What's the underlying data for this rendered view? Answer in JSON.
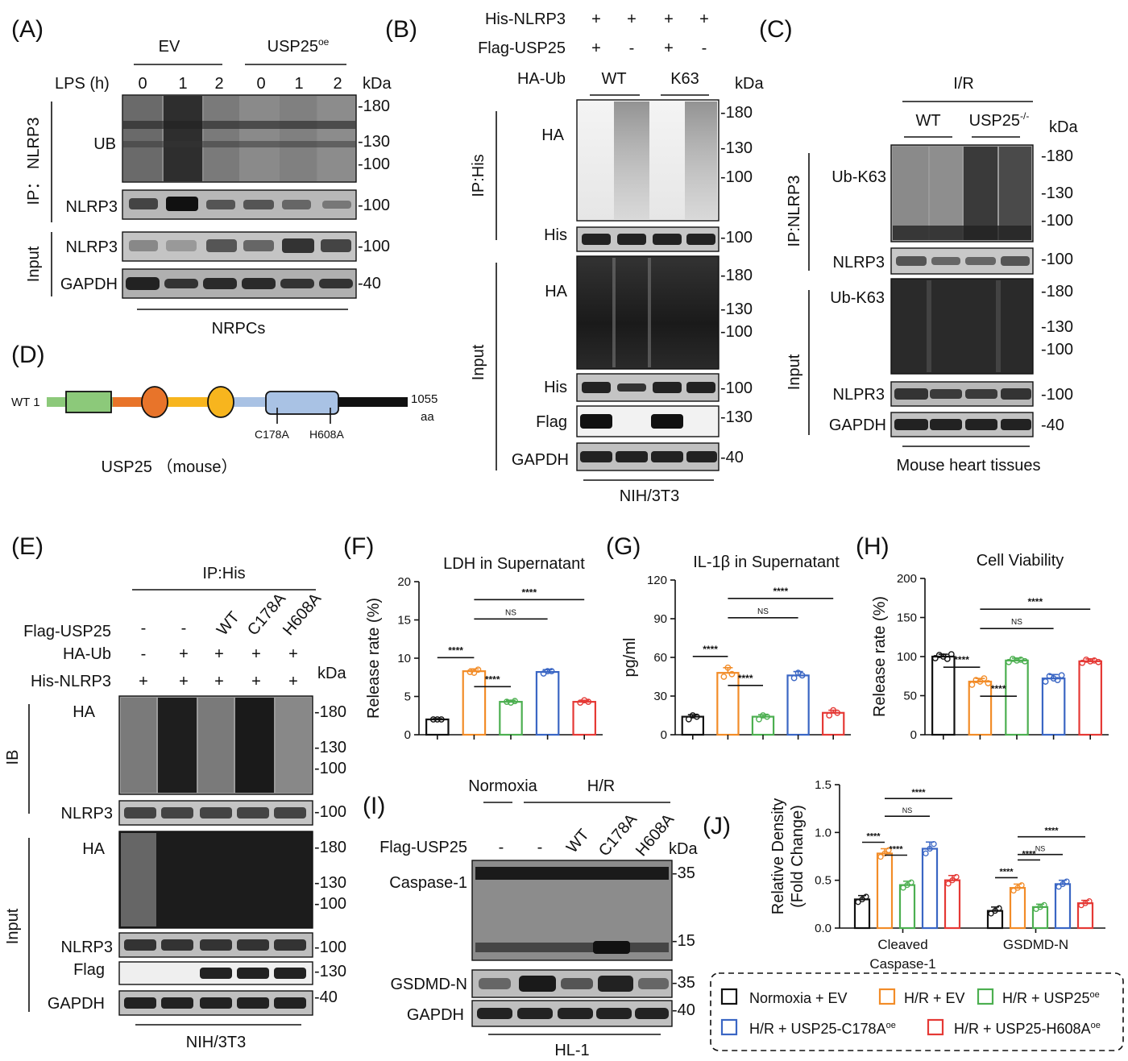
{
  "panels": [
    "(A)",
    "(B)",
    "(C)",
    "(D)",
    "(E)",
    "(F)",
    "(G)",
    "(H)",
    "(I)",
    "(J)"
  ],
  "A": {
    "groups": [
      "EV",
      "USP25oe"
    ],
    "lps_label": "LPS (h)",
    "lps_values": [
      "0",
      "1",
      "2",
      "0",
      "1",
      "2"
    ],
    "kda": "kDa",
    "ip_label": "IP： NLRP3",
    "input_label": "Input",
    "rows": [
      "UB",
      "NLRP3",
      "NLRP3",
      "GAPDH"
    ],
    "markers": [
      "-180",
      "-130",
      "-100",
      "-100",
      "-100",
      "-40"
    ],
    "cell": "NRPCs"
  },
  "B": {
    "rows_top": [
      {
        "label": "His-NLRP3",
        "vals": [
          "+",
          "+",
          "+",
          "+"
        ]
      },
      {
        "label": "Flag-USP25",
        "vals": [
          "+",
          "-",
          "+",
          "-"
        ]
      }
    ],
    "haub_label": "HA-Ub",
    "haub_groups": [
      "WT",
      "K63"
    ],
    "kda": "kDa",
    "ip_label": "IP:His",
    "input_label": "Input",
    "rows": [
      "HA",
      "His",
      "HA",
      "His",
      "Flag",
      "GAPDH"
    ],
    "markers": [
      "-180",
      "-130",
      "-100",
      "-100",
      "-180",
      "-130",
      "-100",
      "-100",
      "-130",
      "-40"
    ],
    "cell": "NIH/3T3"
  },
  "C": {
    "treatment": "I/R",
    "groups": [
      "WT",
      "USP25-/-"
    ],
    "kda": "kDa",
    "ip_label": "IP:NLRP3",
    "input_label": "Input",
    "rows": [
      "Ub-K63",
      "NLRP3",
      "Ub-K63",
      "NLPR3",
      "GAPDH"
    ],
    "markers": [
      "-180",
      "-130",
      "-100",
      "-100",
      "-180",
      "-130",
      "-100",
      "-100",
      "-40"
    ],
    "tissue": "Mouse heart tissues"
  },
  "D": {
    "start": "WT 1",
    "end": "1055",
    "end_unit": "aa",
    "mutations": [
      "C178A",
      "H608A"
    ],
    "title": "USP25 （mouse）",
    "colors": {
      "seg1": "#8cc97a",
      "seg2": "#e8742a",
      "seg3": "#f7b51e",
      "seg4": "#a9c2e4",
      "seg5": "#111111",
      "box1": "#8cc97a",
      "circle1": "#e8742a",
      "circle2": "#f7b51e",
      "box2": "#a9c2e4"
    }
  },
  "E": {
    "ip_label": "IP:His",
    "rows_top": [
      {
        "label": "Flag-USP25",
        "vals": [
          "-",
          "-",
          "WT",
          "C178A",
          "H608A"
        ]
      },
      {
        "label": "HA-Ub",
        "vals": [
          "-",
          "+",
          "+",
          "+",
          "+"
        ]
      },
      {
        "label": "His-NLRP3",
        "vals": [
          "+",
          "+",
          "+",
          "+",
          "+"
        ]
      }
    ],
    "kda": "kDa",
    "ib_label": "IB",
    "input_label": "Input",
    "rows": [
      "HA",
      "NLRP3",
      "HA",
      "NLRP3",
      "Flag",
      "GAPDH"
    ],
    "markers": [
      "-180",
      "-130",
      "-100",
      "-100",
      "-180",
      "-130",
      "-100",
      "-100",
      "-130",
      "-40"
    ],
    "cell": "NIH/3T3"
  },
  "I": {
    "groups": [
      "Normoxia",
      "H/R"
    ],
    "flag_label": "Flag-USP25",
    "flag_vals": [
      "-",
      "-",
      "WT",
      "C178A",
      "H608A"
    ],
    "kda": "kDa",
    "rows": [
      "Caspase-1",
      "GSDMD-N",
      "GAPDH"
    ],
    "markers": [
      "-35",
      "-15",
      "-35",
      "-40"
    ],
    "cell": "HL-1"
  },
  "legend": {
    "items": [
      "Normoxia + EV",
      "H/R + EV",
      "H/R + USP25oe",
      "H/R + USP25-C178Aoe",
      "H/R + USP25-H608Aoe"
    ],
    "colors": [
      "#111111",
      "#f28c28",
      "#4caf50",
      "#3a66c4",
      "#e53935"
    ]
  },
  "chart_data": [
    {
      "panel": "F",
      "type": "bar",
      "title": "LDH in Supernatant",
      "ylabel": "Release rate (%)",
      "ylim": [
        0,
        20
      ],
      "yticks": [
        0,
        5,
        10,
        15,
        20
      ],
      "categories": [
        "Normoxia + EV",
        "H/R + EV",
        "H/R + USP25oe",
        "H/R + USP25-C178Aoe",
        "H/R + USP25-H608Aoe"
      ],
      "values": [
        2.0,
        8.3,
        4.3,
        8.2,
        4.3
      ],
      "errors": [
        0.1,
        0.3,
        0.2,
        0.3,
        0.2
      ],
      "points": [
        [
          2.0,
          2.0,
          2.0
        ],
        [
          8.2,
          8.1,
          8.5
        ],
        [
          4.3,
          4.2,
          4.4
        ],
        [
          8.0,
          8.3,
          8.3
        ],
        [
          4.2,
          4.5,
          4.3
        ]
      ],
      "significance": [
        {
          "from": 0,
          "to": 1,
          "label": "****"
        },
        {
          "from": 1,
          "to": 2,
          "label": "****"
        },
        {
          "from": 1,
          "to": 3,
          "label": "NS"
        },
        {
          "from": 1,
          "to": 4,
          "label": "****"
        }
      ]
    },
    {
      "panel": "G",
      "type": "bar",
      "title": "IL-1β in Supernatant",
      "ylabel": "pg/ml",
      "ylim": [
        0,
        120
      ],
      "yticks": [
        0,
        30,
        60,
        90,
        120
      ],
      "categories": [
        "Normoxia + EV",
        "H/R + EV",
        "H/R + USP25oe",
        "H/R + USP25-C178Aoe",
        "H/R + USP25-H608Aoe"
      ],
      "values": [
        14,
        48,
        14,
        46,
        17
      ],
      "errors": [
        1.5,
        4,
        1.5,
        3,
        2
      ],
      "points": [
        [
          12,
          15,
          14
        ],
        [
          45,
          52,
          47
        ],
        [
          12,
          15,
          14
        ],
        [
          44,
          48,
          46
        ],
        [
          15,
          19,
          17
        ]
      ],
      "significance": [
        {
          "from": 0,
          "to": 1,
          "label": "****"
        },
        {
          "from": 1,
          "to": 2,
          "label": "****"
        },
        {
          "from": 1,
          "to": 3,
          "label": "NS"
        },
        {
          "from": 1,
          "to": 4,
          "label": "****"
        }
      ]
    },
    {
      "panel": "H",
      "type": "bar",
      "title": "Cell Viability",
      "ylabel": "Release rate (%)",
      "ylim": [
        0,
        200
      ],
      "yticks": [
        0,
        50,
        100,
        150,
        200
      ],
      "categories": [
        "Normoxia + EV",
        "H/R + EV",
        "H/R + USP25oe",
        "H/R + USP25-C178Aoe",
        "H/R + USP25-H608Aoe"
      ],
      "values": [
        100,
        68,
        95,
        72,
        94
      ],
      "errors": [
        3,
        4,
        3,
        5,
        3
      ],
      "points": [
        [
          98,
          102,
          100,
          97,
          103
        ],
        [
          64,
          70,
          68,
          72,
          66
        ],
        [
          93,
          97,
          95,
          96,
          94
        ],
        [
          68,
          75,
          72,
          70,
          76
        ],
        [
          92,
          96,
          94,
          95,
          93
        ]
      ],
      "significance": [
        {
          "from": 0,
          "to": 1,
          "label": "****"
        },
        {
          "from": 1,
          "to": 2,
          "label": "****"
        },
        {
          "from": 1,
          "to": 3,
          "label": "NS"
        },
        {
          "from": 1,
          "to": 4,
          "label": "****"
        }
      ]
    },
    {
      "panel": "J",
      "type": "bar",
      "ylabel": "Relative Density (Fold Change)",
      "ylabel_lines": [
        "Relative Density",
        "(Fold Change)"
      ],
      "ylim": [
        0,
        1.5
      ],
      "yticks": [
        0.0,
        0.5,
        1.0,
        1.5
      ],
      "ytick_labels": [
        "0.0",
        "0.5",
        "1.0",
        "1.5"
      ],
      "groups": [
        "Cleaved Caspase-1",
        "GSDMD-N"
      ],
      "group_label_lines": [
        [
          "Cleaved",
          "Caspase-1"
        ],
        [
          "GSDMD-N"
        ]
      ],
      "series": [
        {
          "name": "Normoxia + EV",
          "values": [
            0.3,
            0.18
          ]
        },
        {
          "name": "H/R + EV",
          "values": [
            0.78,
            0.42
          ]
        },
        {
          "name": "H/R + USP25oe",
          "values": [
            0.45,
            0.22
          ]
        },
        {
          "name": "H/R + USP25-C178Aoe",
          "values": [
            0.83,
            0.46
          ]
        },
        {
          "name": "H/R + USP25-H608Aoe",
          "values": [
            0.5,
            0.26
          ]
        }
      ],
      "errors": [
        [
          0.04,
          0.04
        ],
        [
          0.05,
          0.04
        ],
        [
          0.04,
          0.03
        ],
        [
          0.07,
          0.04
        ],
        [
          0.05,
          0.03
        ]
      ],
      "significance": [
        {
          "group": 0,
          "from": 0,
          "to": 1,
          "label": "****"
        },
        {
          "group": 0,
          "from": 1,
          "to": 2,
          "label": "****"
        },
        {
          "group": 0,
          "from": 1,
          "to": 3,
          "label": "NS"
        },
        {
          "group": 0,
          "from": 1,
          "to": 4,
          "label": "****"
        },
        {
          "group": 1,
          "from": 0,
          "to": 1,
          "label": "****"
        },
        {
          "group": 1,
          "from": 1,
          "to": 2,
          "label": "****"
        },
        {
          "group": 1,
          "from": 1,
          "to": 3,
          "label": "NS"
        },
        {
          "group": 1,
          "from": 1,
          "to": 4,
          "label": "****"
        }
      ]
    }
  ]
}
